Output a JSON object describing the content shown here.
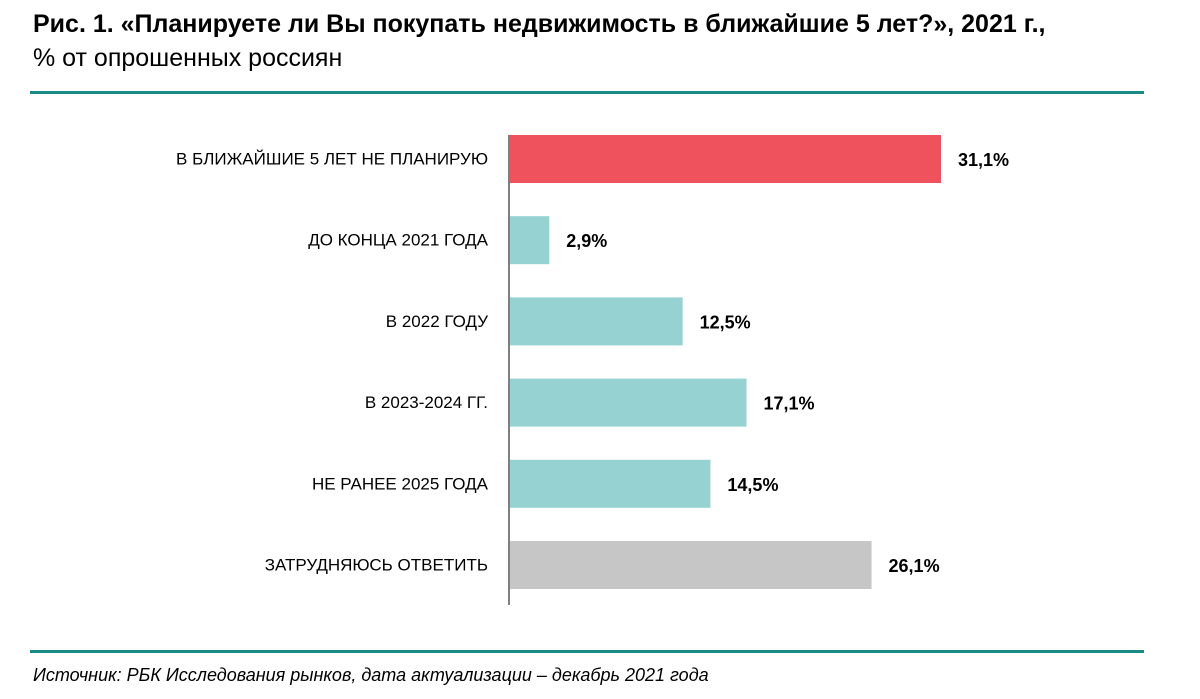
{
  "header": {
    "title": "Рис. 1. «Планируете ли Вы покупать недвижимость в ближайшие 5 лет?», 2021 г.,",
    "subtitle": "% от опрошенных россиян"
  },
  "footer": {
    "source": "Источник: РБК Исследования рынков, дата актуализации – декабрь 2021 года"
  },
  "colors": {
    "accent_rule": "#1a8a87",
    "axis": "#7f7f7f",
    "highlight": "#f0525d",
    "primary": "#95d2d1",
    "neutral": "#c6c6c6"
  },
  "chart_data": {
    "type": "bar",
    "orientation": "horizontal",
    "categories": [
      "В БЛИЖАЙШИЕ 5 ЛЕТ НЕ ПЛАНИРУЮ",
      "ДО КОНЦА 2021 ГОДА",
      "В 2022 ГОДУ",
      "В 2023-2024 ГГ.",
      "НЕ РАНЕЕ 2025 ГОДА",
      "ЗАТРУДНЯЮСЬ ОТВЕТИТЬ"
    ],
    "values": [
      31.1,
      2.9,
      12.5,
      17.1,
      14.5,
      26.1
    ],
    "value_labels": [
      "31,1%",
      "2,9%",
      "12,5%",
      "17,1%",
      "14,5%",
      "26,1%"
    ],
    "bar_colors": [
      "#f0525d",
      "#95d2d1",
      "#95d2d1",
      "#95d2d1",
      "#95d2d1",
      "#c6c6c6"
    ],
    "xlim": [
      0,
      31.1
    ],
    "grid": false,
    "legend": "none"
  }
}
